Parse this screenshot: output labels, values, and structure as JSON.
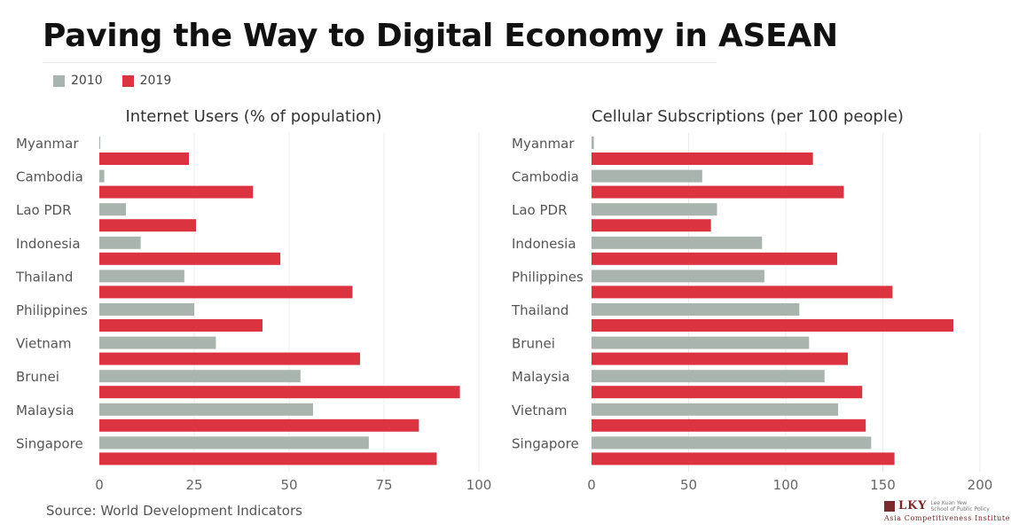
{
  "title": "Paving the Way to Digital Economy in ASEAN",
  "legend": [
    {
      "label": "2010",
      "color": "#aab4ae"
    },
    {
      "label": "2019",
      "color": "#dc3340"
    }
  ],
  "source": "Source: World Development Indicators",
  "logo": {
    "mark": "LKY",
    "name_line1": "Lee Kuan Yew",
    "name_line2": "School of Public Policy",
    "institute": "Asia Competitiveness Institute"
  },
  "chart_data": [
    {
      "type": "bar",
      "orientation": "horizontal",
      "title": "Internet Users (% of population)",
      "categories": [
        "Myanmar",
        "Cambodia",
        "Lao PDR",
        "Indonesia",
        "Thailand",
        "Philippines",
        "Vietnam",
        "Brunei",
        "Malaysia",
        "Singapore"
      ],
      "series": [
        {
          "name": "2010",
          "color": "#aab4ae",
          "values": [
            0.25,
            1.3,
            7,
            10.9,
            22.4,
            25,
            30.7,
            53,
            56.3,
            71
          ]
        },
        {
          "name": "2019",
          "color": "#dc3340",
          "values": [
            23.6,
            40.5,
            25.5,
            47.7,
            66.7,
            43,
            68.7,
            95,
            84.2,
            88.9
          ]
        }
      ],
      "xlim": [
        0,
        100
      ],
      "xticks": [
        0,
        25,
        50,
        75,
        100
      ],
      "grid": true
    },
    {
      "type": "bar",
      "orientation": "horizontal",
      "title": "Cellular Subscriptions (per 100 people)",
      "categories": [
        "Myanmar",
        "Cambodia",
        "Lao PDR",
        "Indonesia",
        "Philippines",
        "Thailand",
        "Brunei",
        "Malaysia",
        "Vietnam",
        "Singapore"
      ],
      "series": [
        {
          "name": "2010",
          "color": "#aab4ae",
          "values": [
            1.2,
            57,
            64.6,
            87.8,
            89,
            107,
            112,
            120,
            127,
            144
          ]
        },
        {
          "name": "2019",
          "color": "#dc3340",
          "values": [
            114,
            129.9,
            61.5,
            126.5,
            155,
            186.3,
            132,
            139.4,
            141.2,
            156
          ]
        }
      ],
      "xlim": [
        0,
        200
      ],
      "xticks": [
        0,
        50,
        100,
        150,
        200
      ],
      "grid": true
    }
  ]
}
